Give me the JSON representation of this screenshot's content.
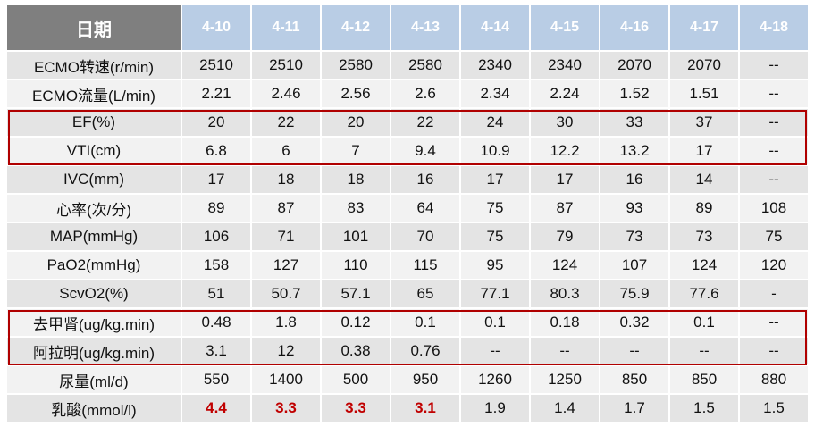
{
  "table": {
    "header": [
      "日期",
      "4-10",
      "4-11",
      "4-12",
      "4-13",
      "4-14",
      "4-15",
      "4-16",
      "4-17",
      "4-18"
    ],
    "rows": [
      [
        "ECMO转速(r/min)",
        "2510",
        "2510",
        "2580",
        "2580",
        "2340",
        "2340",
        "2070",
        "2070",
        "--"
      ],
      [
        "ECMO流量(L/min)",
        "2.21",
        "2.46",
        "2.56",
        "2.6",
        "2.34",
        "2.24",
        "1.52",
        "1.51",
        "--"
      ],
      [
        "EF(%)",
        "20",
        "22",
        "20",
        "22",
        "24",
        "30",
        "33",
        "37",
        "--"
      ],
      [
        "VTI(cm)",
        "6.8",
        "6",
        "7",
        "9.4",
        "10.9",
        "12.2",
        "13.2",
        "17",
        "--"
      ],
      [
        "IVC(mm)",
        "17",
        "18",
        "18",
        "16",
        "17",
        "17",
        "16",
        "14",
        "--"
      ],
      [
        "心率(次/分)",
        "89",
        "87",
        "83",
        "64",
        "75",
        "87",
        "93",
        "89",
        "108"
      ],
      [
        "MAP(mmHg)",
        "106",
        "71",
        "101",
        "70",
        "75",
        "79",
        "73",
        "73",
        "75"
      ],
      [
        "PaO2(mmHg)",
        "158",
        "127",
        "110",
        "115",
        "95",
        "124",
        "107",
        "124",
        "120"
      ],
      [
        "ScvO2(%)",
        "51",
        "50.7",
        "57.1",
        "65",
        "77.1",
        "80.3",
        "75.9",
        "77.6",
        "-"
      ],
      [
        "去甲肾(ug/kg.min)",
        "0.48",
        "1.8",
        "0.12",
        "0.1",
        "0.1",
        "0.18",
        "0.32",
        "0.1",
        "--"
      ],
      [
        "阿拉明(ug/kg.min)",
        "3.1",
        "12",
        "0.38",
        "0.76",
        "--",
        "--",
        "--",
        "--",
        "--"
      ],
      [
        "尿量(ml/d)",
        "550",
        "1400",
        "500",
        "950",
        "1260",
        "1250",
        "850",
        "850",
        "880"
      ],
      [
        "乳酸(mmol/l)",
        "4.4",
        "3.3",
        "3.3",
        "3.1",
        "1.9",
        "1.4",
        "1.7",
        "1.5",
        "1.5"
      ]
    ]
  }
}
